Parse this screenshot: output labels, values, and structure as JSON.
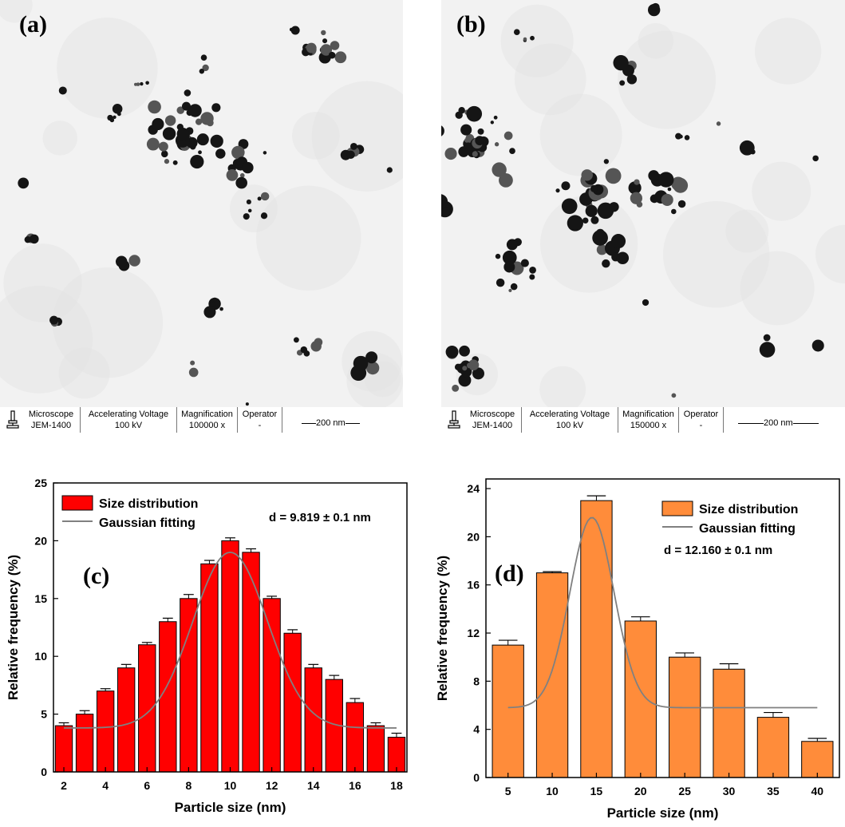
{
  "panels": [
    {
      "letter": "(a)",
      "info": {
        "microscope_label": "Microscope",
        "microscope_value": "JEM-1400",
        "voltage_label": "Accelerating Voltage",
        "voltage_value": "100 kV",
        "magnification_label": "Magnification",
        "magnification_value": "100000 x",
        "operator_label": "Operator",
        "operator_value": "-",
        "scale_bar": "200 nm"
      }
    },
    {
      "letter": "(b)",
      "info": {
        "microscope_label": "Microscope",
        "microscope_value": "JEM-1400",
        "voltage_label": "Accelerating Voltage",
        "voltage_value": "100 kV",
        "magnification_label": "Magnification",
        "magnification_value": "150000 x",
        "operator_label": "Operator",
        "operator_value": "-",
        "scale_bar": "200 nm"
      }
    }
  ],
  "colors": {
    "bar_c": "#ff0000",
    "bar_d": "#ff8c3a",
    "fit": "#808080",
    "tem_bg": "#f2f2f2",
    "particle": "#151515"
  },
  "icons": {
    "microscope": "microscope-icon"
  },
  "chart_data": [
    {
      "type": "bar",
      "panel_label": "(c)",
      "x": [
        2,
        3,
        4,
        5,
        6,
        7,
        8,
        9,
        10,
        11,
        12,
        13,
        14,
        15,
        16,
        17,
        18
      ],
      "values": [
        4,
        5,
        7,
        9,
        11,
        13,
        15,
        18,
        20,
        19,
        15,
        12,
        9,
        8,
        6,
        4,
        3
      ],
      "errors": [
        0.25,
        0.3,
        0.2,
        0.3,
        0.2,
        0.3,
        0.35,
        0.3,
        0.25,
        0.3,
        0.2,
        0.3,
        0.3,
        0.35,
        0.35,
        0.25,
        0.35
      ],
      "xticks": [
        2,
        4,
        6,
        8,
        10,
        12,
        14,
        16,
        18
      ],
      "yticks": [
        0,
        5,
        10,
        15,
        20,
        25
      ],
      "xlim": [
        1.5,
        18.5
      ],
      "ylim": [
        0,
        25
      ],
      "xlabel": "Particle size (nm)",
      "ylabel": "Relative frequency (%)",
      "legend": [
        "Size distribution",
        "Gaussian fitting"
      ],
      "annotation": "d = 9.819 ± 0.1 nm",
      "fit": {
        "y0": 3.8,
        "A": 15.2,
        "xc": 10,
        "w": 3.6,
        "x_start": 2,
        "x_end": 18
      },
      "legend_position": "top-left"
    },
    {
      "type": "bar",
      "panel_label": "(d)",
      "x": [
        5,
        10,
        15,
        20,
        25,
        30,
        35,
        40
      ],
      "values": [
        11,
        17,
        23,
        13,
        10,
        9,
        5,
        3
      ],
      "errors": [
        0.4,
        0.1,
        0.4,
        0.35,
        0.35,
        0.45,
        0.4,
        0.25
      ],
      "xticks": [
        5,
        10,
        15,
        20,
        25,
        30,
        35,
        40
      ],
      "yticks": [
        0,
        4,
        8,
        12,
        16,
        20,
        24
      ],
      "xlim": [
        2.5,
        42.5
      ],
      "ylim": [
        0,
        24.8
      ],
      "xlabel": "Particle size (nm)",
      "ylabel": "Relative frequency (%)",
      "legend": [
        "Size distribution",
        "Gaussian fitting"
      ],
      "annotation": "d = 12.160 ± 0.1 nm",
      "fit": {
        "y0": 5.8,
        "A": 15.8,
        "xc": 14.5,
        "w": 5.0,
        "x_start": 5,
        "x_end": 40
      },
      "legend_position": "top-right"
    }
  ]
}
